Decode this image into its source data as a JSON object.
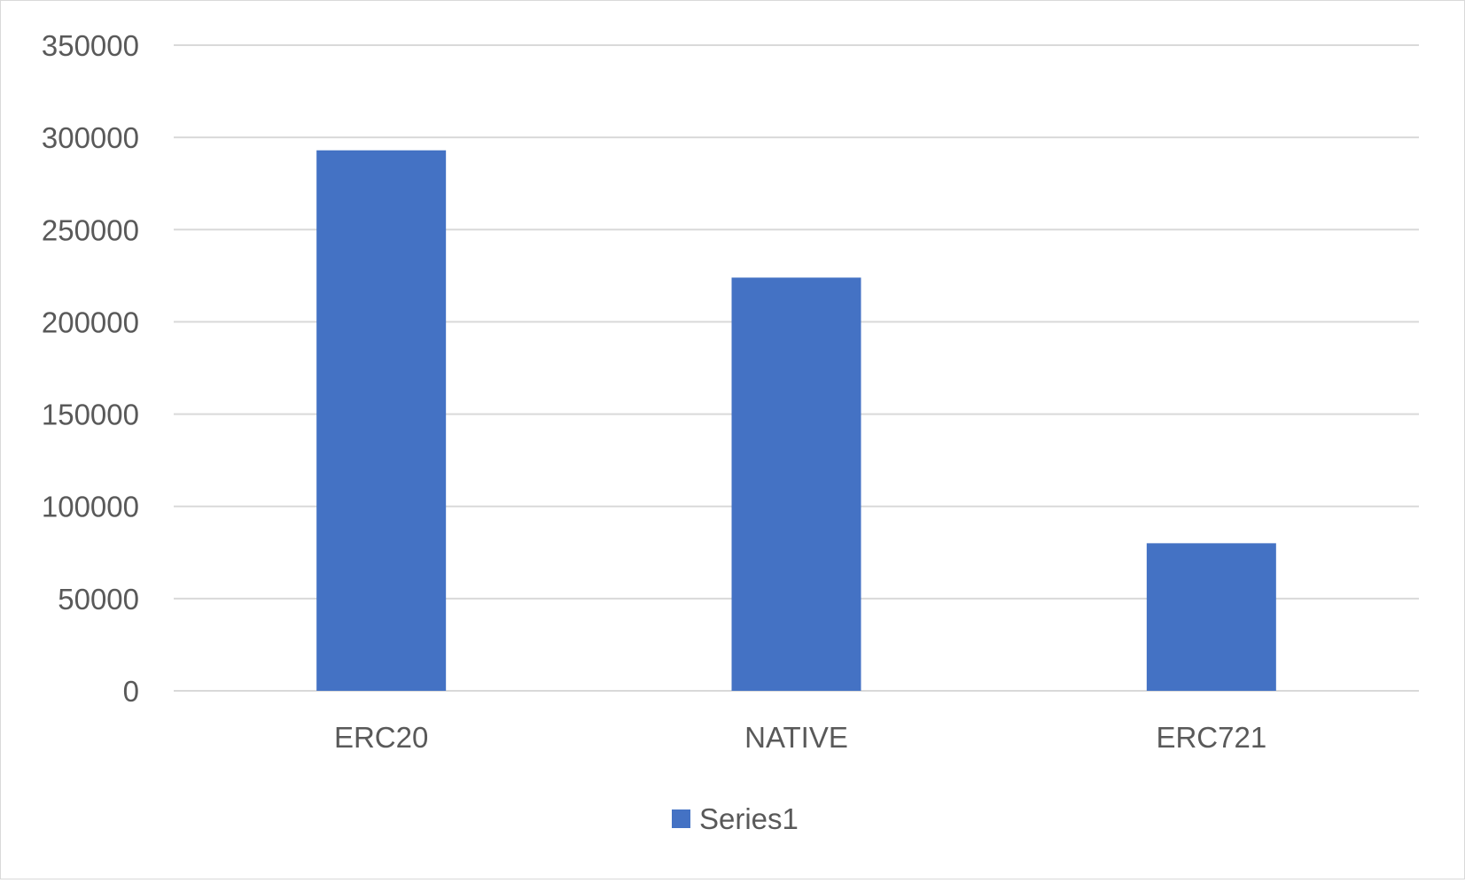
{
  "chart_data": {
    "type": "bar",
    "categories": [
      "ERC20",
      "NATIVE",
      "ERC721"
    ],
    "series": [
      {
        "name": "Series1",
        "values": [
          293000,
          224000,
          80000
        ],
        "color": "#4472C4"
      }
    ],
    "ylim": [
      0,
      350000
    ],
    "yticks": [
      0,
      50000,
      100000,
      150000,
      200000,
      250000,
      300000,
      350000
    ],
    "ytick_labels": [
      "0",
      "50000",
      "100000",
      "150000",
      "200000",
      "250000",
      "300000",
      "350000"
    ],
    "grid": true,
    "legend": {
      "position": "bottom",
      "entries": [
        "Series1"
      ]
    },
    "gridline_color": "#d9d9d9",
    "text_color": "#595959"
  }
}
